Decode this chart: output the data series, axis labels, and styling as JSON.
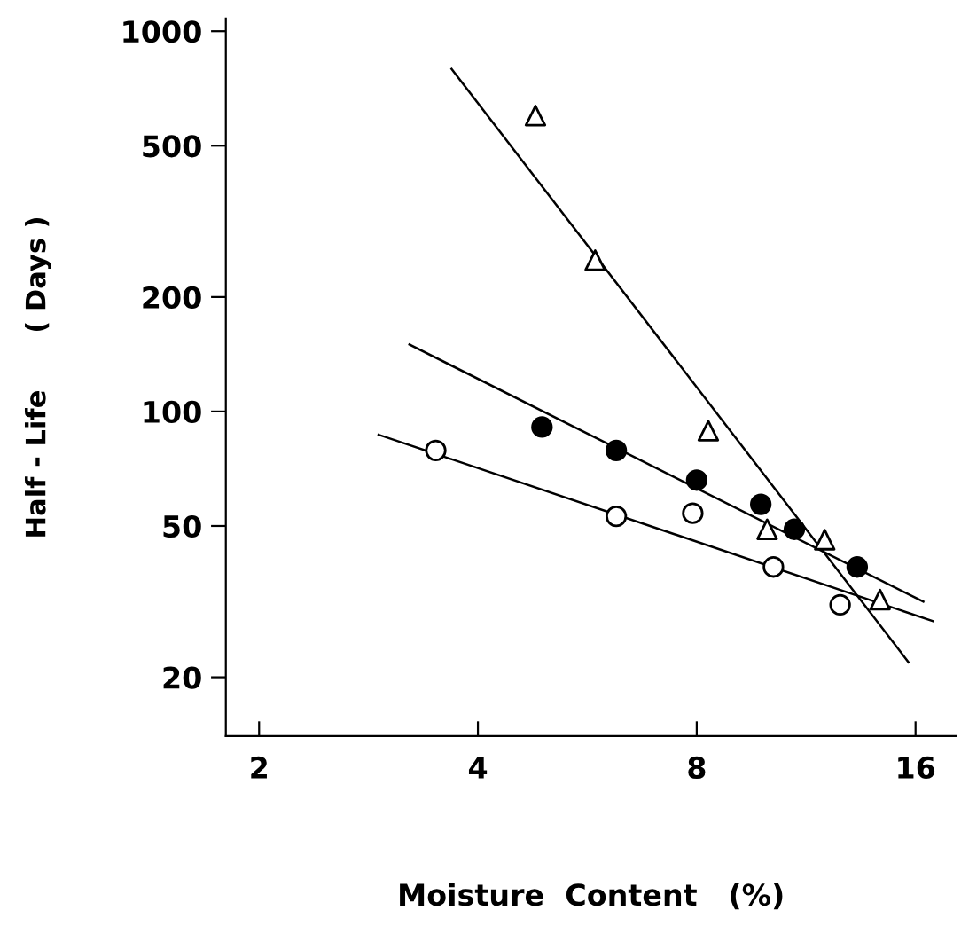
{
  "chart_data": {
    "type": "scatter",
    "xlabel": "Moisture  Content   (%)",
    "ylabel": "Half - Life      ( Days )",
    "log": "xy",
    "grid": false,
    "legend": false,
    "xlim": [
      1.8,
      18.2
    ],
    "xticks": [
      2,
      4,
      8,
      16
    ],
    "ylim": [
      14,
      1080
    ],
    "yticks": [
      20,
      50,
      100,
      200,
      500,
      1000
    ],
    "series": [
      {
        "marker": "triangle",
        "color": "#ffffff",
        "x": [
          4.8,
          5.8,
          8.3,
          10,
          12,
          14.3
        ],
        "values": [
          600,
          250,
          89,
          49,
          46,
          32
        ]
      },
      {
        "marker": "circle",
        "color": "#000000",
        "x": [
          4.9,
          6.2,
          8,
          9.8,
          10.9,
          13.3
        ],
        "values": [
          91,
          79,
          66,
          57,
          49,
          39
        ]
      },
      {
        "marker": "circle",
        "color": "#ffffff",
        "x": [
          3.5,
          6.2,
          7.9,
          10.2,
          12.6
        ],
        "values": [
          79,
          53,
          54,
          39,
          31
        ]
      },
      {
        "type": "line",
        "color": "#000000",
        "x": [
          3.68,
          15.65
        ],
        "values": [
          796,
          21.9
        ]
      },
      {
        "type": "line",
        "color": "#000000",
        "x": [
          3.22,
          16.4
        ],
        "values": [
          150,
          31.6
        ]
      },
      {
        "type": "line",
        "color": "#000000",
        "x": [
          2.92,
          16.9
        ],
        "values": [
          86.9,
          28.1
        ]
      }
    ]
  }
}
